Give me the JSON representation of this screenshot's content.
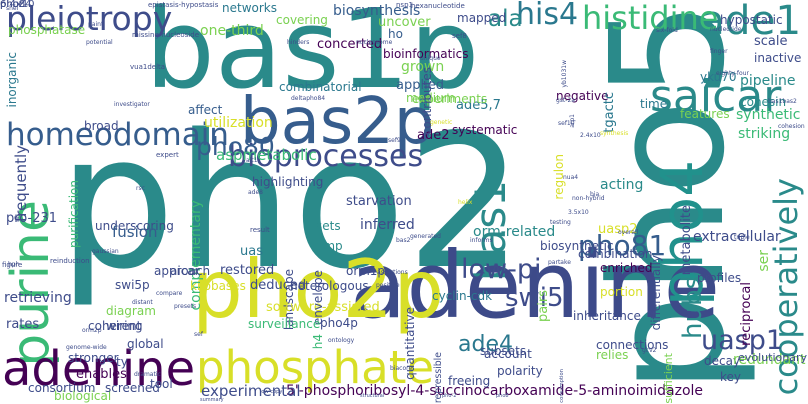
{
  "word_cloud": {
    "words": [
      {
        "text": "pho2",
        "color": "#2a8a8a"
      },
      {
        "text": "pho5",
        "color": "#2a8a8a"
      },
      {
        "text": "bas1p",
        "color": "#2a8a8a"
      },
      {
        "text": "adenine",
        "color": "#3d4a89"
      },
      {
        "text": "pho2p",
        "color": "#d8df28"
      },
      {
        "text": "bas2p",
        "color": "#365d8d"
      },
      {
        "text": "pho4",
        "color": "#21918c"
      },
      {
        "text": "ade1",
        "color": "#2a8a8a"
      },
      {
        "text": "purine",
        "color": "#3aba76"
      },
      {
        "text": "phosphate",
        "color": "#d8df28"
      },
      {
        "text": "adenine",
        "color": "#440154"
      },
      {
        "text": "saicar",
        "color": "#2a8a8a"
      },
      {
        "text": "bas1",
        "color": "#2a8a8a"
      },
      {
        "text": "bioprocesses",
        "color": "#3e4c8a"
      },
      {
        "text": "pleiotropy",
        "color": "#3e4c8a"
      },
      {
        "text": "homeodomain",
        "color": "#365d8d"
      },
      {
        "text": "histidine",
        "color": "#3aba76"
      },
      {
        "text": "his4",
        "color": "#2a788e"
      },
      {
        "text": "ala",
        "color": "#2a8a8a"
      },
      {
        "text": "pho80",
        "color": "#365d8d"
      },
      {
        "text": "cooperatively",
        "color": "#2a8a8a"
      },
      {
        "text": "low-pi",
        "color": "#3e4c8a"
      },
      {
        "text": "pho81",
        "color": "#365d8d"
      },
      {
        "text": "swi5",
        "color": "#3e4c8a"
      },
      {
        "text": "uasp1",
        "color": "#3e4c8a"
      },
      {
        "text": "hubs",
        "color": "#2a8a8a"
      },
      {
        "text": "ade4",
        "color": "#2a788e"
      },
      {
        "text": "5'-phosphoribosyl-4-succinocarboxamide-5-aminoimidazole",
        "color": "#440154"
      },
      {
        "text": "experimental",
        "color": "#3e4c8a"
      },
      {
        "text": "biosynthesis",
        "color": "#365d8d"
      },
      {
        "text": "networks",
        "color": "#2a788e"
      },
      {
        "text": "covering",
        "color": "#7ad151"
      },
      {
        "text": "uncover",
        "color": "#7ad151"
      },
      {
        "text": "concerted",
        "color": "#440154"
      },
      {
        "text": "phosphatase",
        "color": "#7ad151"
      },
      {
        "text": "one-third",
        "color": "#7ad151"
      },
      {
        "text": "inorganic",
        "color": "#2a788e"
      },
      {
        "text": "combinatorial",
        "color": "#2a788e"
      },
      {
        "text": "grown",
        "color": "#7ad151"
      },
      {
        "text": "applied",
        "color": "#365d8d"
      },
      {
        "text": "medium",
        "color": "#7ad151"
      },
      {
        "text": "ade5,7",
        "color": "#2a788e"
      },
      {
        "text": "negative",
        "color": "#440154"
      },
      {
        "text": "tgactc",
        "color": "#2a788e"
      },
      {
        "text": "pipeline",
        "color": "#2a8a8a"
      },
      {
        "text": "cohesin",
        "color": "#2a8a8a"
      },
      {
        "text": "yku70",
        "color": "#2a788e"
      },
      {
        "text": "scale",
        "color": "#3e4c8a"
      },
      {
        "text": "inactive",
        "color": "#3e4c8a"
      },
      {
        "text": "utilization",
        "color": "#d8df28"
      },
      {
        "text": "broad",
        "color": "#3e4c8a"
      },
      {
        "text": "affect",
        "color": "#365d8d"
      },
      {
        "text": "systematic",
        "color": "#440154"
      },
      {
        "text": "ade2",
        "color": "#440154"
      },
      {
        "text": "regulon",
        "color": "#d8df28"
      },
      {
        "text": "time",
        "color": "#2a788e"
      },
      {
        "text": "synthetic",
        "color": "#3aba76"
      },
      {
        "text": "striking",
        "color": "#3aba76"
      },
      {
        "text": "features",
        "color": "#7ad151"
      },
      {
        "text": "frequently",
        "color": "#3e4c8a"
      },
      {
        "text": "aspmetabolic",
        "color": "#3aba76"
      },
      {
        "text": "highlighting",
        "color": "#3e4c8a"
      },
      {
        "text": "starvation",
        "color": "#3e4c8a"
      },
      {
        "text": "acting",
        "color": "#2a8a8a"
      },
      {
        "text": "metabolite",
        "color": "#3e4c8a"
      },
      {
        "text": "pro-231",
        "color": "#3e4c8a"
      },
      {
        "text": "purification",
        "color": "#3aba76"
      },
      {
        "text": "underscoring",
        "color": "#3e4c8a"
      },
      {
        "text": "complementary",
        "color": "#3aba76"
      },
      {
        "text": "fusion",
        "color": "#365d8d"
      },
      {
        "text": "uas",
        "color": "#2a788e"
      },
      {
        "text": "sets",
        "color": "#2a8a8a"
      },
      {
        "text": "amp",
        "color": "#2a8a8a"
      },
      {
        "text": "inferred",
        "color": "#3e4c8a"
      },
      {
        "text": "orm-related",
        "color": "#2a8a8a"
      },
      {
        "text": "uasp2",
        "color": "#d8df28"
      },
      {
        "text": "extracellular",
        "color": "#3e4c8a"
      },
      {
        "text": "biosynthetic",
        "color": "#3e4c8a"
      },
      {
        "text": "combination",
        "color": "#3e4c8a"
      },
      {
        "text": "pairs",
        "color": "#7ad151"
      },
      {
        "text": "differentially",
        "color": "#3e4c8a"
      },
      {
        "text": "profiles",
        "color": "#3e4c8a"
      },
      {
        "text": "ser",
        "color": "#7ad151"
      },
      {
        "text": "aicar",
        "color": "#3e4c8a"
      },
      {
        "text": "restored",
        "color": "#3e4c8a"
      },
      {
        "text": "landscape",
        "color": "#3e4c8a"
      },
      {
        "text": "approach",
        "color": "#3e4c8a"
      },
      {
        "text": "kilobases",
        "color": "#d8df28"
      },
      {
        "text": "cyclin-cdk",
        "color": "#2a788e"
      },
      {
        "text": "enriched",
        "color": "#440154"
      },
      {
        "text": "retrieving",
        "color": "#3e4c8a"
      },
      {
        "text": "swi5p",
        "color": "#3e4c8a"
      },
      {
        "text": "deduced",
        "color": "#3e4c8a"
      },
      {
        "text": "software-assisted",
        "color": "#d8df28"
      },
      {
        "text": "envelope",
        "color": "#3e4c8a"
      },
      {
        "text": "inheritance",
        "color": "#3e4c8a"
      },
      {
        "text": "portion",
        "color": "#d8df28"
      },
      {
        "text": "reciprocal",
        "color": "#440154"
      },
      {
        "text": "rates",
        "color": "#3e4c8a"
      },
      {
        "text": "diagram",
        "color": "#7ad151"
      },
      {
        "text": "wiring",
        "color": "#3e4c8a"
      },
      {
        "text": "coherent",
        "color": "#3e4c8a"
      },
      {
        "text": "global",
        "color": "#3e4c8a"
      },
      {
        "text": "ty",
        "color": "#3e4c8a"
      },
      {
        "text": "surveillance",
        "color": "#3aba76"
      },
      {
        "text": "quantitative",
        "color": "#3e4c8a"
      },
      {
        "text": "connections",
        "color": "#3e4c8a"
      },
      {
        "text": "relies",
        "color": "#7ad151"
      },
      {
        "text": "decay",
        "color": "#3e4c8a"
      },
      {
        "text": "account",
        "color": "#3e4c8a"
      },
      {
        "text": "polarity",
        "color": "#3e4c8a"
      },
      {
        "text": "repressible",
        "color": "#3e4c8a"
      },
      {
        "text": "consumption",
        "color": "#3e4c8a"
      },
      {
        "text": "sufficient",
        "color": "#7ad151"
      },
      {
        "text": "redundant",
        "color": "#7ad151"
      },
      {
        "text": "key",
        "color": "#3e4c8a"
      },
      {
        "text": "enables",
        "color": "#440154"
      },
      {
        "text": "consortium",
        "color": "#3e4c8a"
      },
      {
        "text": "biological",
        "color": "#7ad151"
      },
      {
        "text": "tool",
        "color": "#3e4c8a"
      },
      {
        "text": "pho4p",
        "color": "#3e4c8a"
      },
      {
        "text": "h4",
        "color": "#3aba76"
      },
      {
        "text": "ho",
        "color": "#365d8d"
      },
      {
        "text": "bioinformatics",
        "color": "#440154"
      },
      {
        "text": "experiments",
        "color": "#7ad151"
      },
      {
        "text": "contributes",
        "color": "#3e4c8a"
      },
      {
        "text": "mapped",
        "color": "#3e4c8a"
      },
      {
        "text": "hypostatic",
        "color": "#3e4c8a"
      },
      {
        "text": "orm1p",
        "color": "#3e4c8a"
      },
      {
        "text": "heterologous",
        "color": "#3e4c8a"
      },
      {
        "text": "subsets",
        "color": "#3e4c8a"
      },
      {
        "text": "evolutionary",
        "color": "#3e4c8a"
      },
      {
        "text": "freeing",
        "color": "#3e4c8a"
      },
      {
        "text": "stronger",
        "color": "#3e4c8a"
      },
      {
        "text": "screened",
        "color": "#3e4c8a"
      },
      {
        "text": "paint",
        "color": "#3e4c8a"
      },
      {
        "text": "potential",
        "color": "#3e4c8a"
      },
      {
        "text": "epistasis-hypostasis",
        "color": "#3e4c8a"
      },
      {
        "text": "missing-nucleoside",
        "color": "#3e4c8a"
      },
      {
        "text": "nsp1",
        "color": "#3e4c8a"
      },
      {
        "text": "hinders",
        "color": "#3e4c8a"
      },
      {
        "text": "sef8",
        "color": "#3e4c8a"
      },
      {
        "text": "vua1delta",
        "color": "#3e4c8a"
      },
      {
        "text": "investigator",
        "color": "#3e4c8a"
      },
      {
        "text": "deltapho84",
        "color": "#3e4c8a"
      },
      {
        "text": "hexanucleotide",
        "color": "#3e4c8a"
      },
      {
        "text": "nucleotide",
        "color": "#3e4c8a"
      },
      {
        "text": "finger",
        "color": "#3e4c8a"
      },
      {
        "text": "eighty-four",
        "color": "#3e4c8a"
      },
      {
        "text": "bas1bas2",
        "color": "#3e4c8a"
      },
      {
        "text": "cohesion",
        "color": "#3e4c8a"
      },
      {
        "text": "expert",
        "color": "#3e4c8a"
      },
      {
        "text": "synthesis",
        "color": "#d8df28"
      },
      {
        "text": "triple",
        "color": "#3e4c8a"
      },
      {
        "text": "gaussian",
        "color": "#3e4c8a"
      },
      {
        "text": "figure",
        "color": "#3e4c8a"
      },
      {
        "text": "reinduction",
        "color": "#3e4c8a"
      },
      {
        "text": "result",
        "color": "#3e4c8a"
      },
      {
        "text": "generated",
        "color": "#3e4c8a"
      },
      {
        "text": "informs",
        "color": "#3e4c8a"
      },
      {
        "text": "testing",
        "color": "#3e4c8a"
      },
      {
        "text": "partake",
        "color": "#3e4c8a"
      },
      {
        "text": "distant",
        "color": "#3e4c8a"
      },
      {
        "text": "compare",
        "color": "#3e4c8a"
      },
      {
        "text": "biacore",
        "color": "#3e4c8a"
      },
      {
        "text": "genome-wide",
        "color": "#3e4c8a"
      },
      {
        "text": "dramatic",
        "color": "#3e4c8a"
      },
      {
        "text": "positive",
        "color": "#3e4c8a"
      },
      {
        "text": "assertions",
        "color": "#3e4c8a"
      },
      {
        "text": "ontology",
        "color": "#3e4c8a"
      },
      {
        "text": "bas2",
        "color": "#3e4c8a"
      },
      {
        "text": "orm2p",
        "color": "#3e4c8a"
      },
      {
        "text": "presets",
        "color": "#3e4c8a"
      },
      {
        "text": "sef",
        "color": "#3e4c8a"
      },
      {
        "text": "bia",
        "color": "#3e4c8a"
      },
      {
        "text": "3.5x10",
        "color": "#3e4c8a"
      },
      {
        "text": "2.4x10",
        "color": "#3e4c8a"
      },
      {
        "text": "nua4",
        "color": "#3e4c8a"
      },
      {
        "text": "arp1",
        "color": "#3e4c8a"
      },
      {
        "text": "yb1031w",
        "color": "#3e4c8a"
      },
      {
        "text": "gcv2",
        "color": "#3e4c8a"
      },
      {
        "text": "gst-2a",
        "color": "#3e4c8a"
      },
      {
        "text": "sef10",
        "color": "#3e4c8a"
      },
      {
        "text": "sef9",
        "color": "#3e4c8a"
      },
      {
        "text": "alt1",
        "color": "#3e4c8a"
      },
      {
        "text": "shel",
        "color": "#3e4c8a"
      },
      {
        "text": "nucleosome",
        "color": "#3e4c8a"
      },
      {
        "text": "rsc",
        "color": "#3e4c8a"
      },
      {
        "text": "hph",
        "color": "#3e4c8a"
      },
      {
        "text": "ade8",
        "color": "#3e4c8a"
      },
      {
        "text": "genetic",
        "color": "#d8df28"
      },
      {
        "text": "helix",
        "color": "#d8df28"
      },
      {
        "text": "non-hybrid",
        "color": "#3e4c8a"
      },
      {
        "text": "six-fold",
        "color": "#3e4c8a"
      },
      {
        "text": "unique",
        "color": "#3e4c8a"
      },
      {
        "text": "overall",
        "color": "#3e4c8a"
      },
      {
        "text": "summary",
        "color": "#3e4c8a"
      },
      {
        "text": "low-copy",
        "color": "#3e4c8a"
      },
      {
        "text": "structural",
        "color": "#3e4c8a"
      },
      {
        "text": "pho-2",
        "color": "#3e4c8a"
      },
      {
        "text": "pho8",
        "color": "#3e4c8a"
      },
      {
        "text": "pho84",
        "color": "#3e4c8a"
      },
      {
        "text": "phoz",
        "color": "#3e4c8a"
      },
      {
        "text": "6.4x10",
        "color": "#3e4c8a"
      }
    ]
  }
}
